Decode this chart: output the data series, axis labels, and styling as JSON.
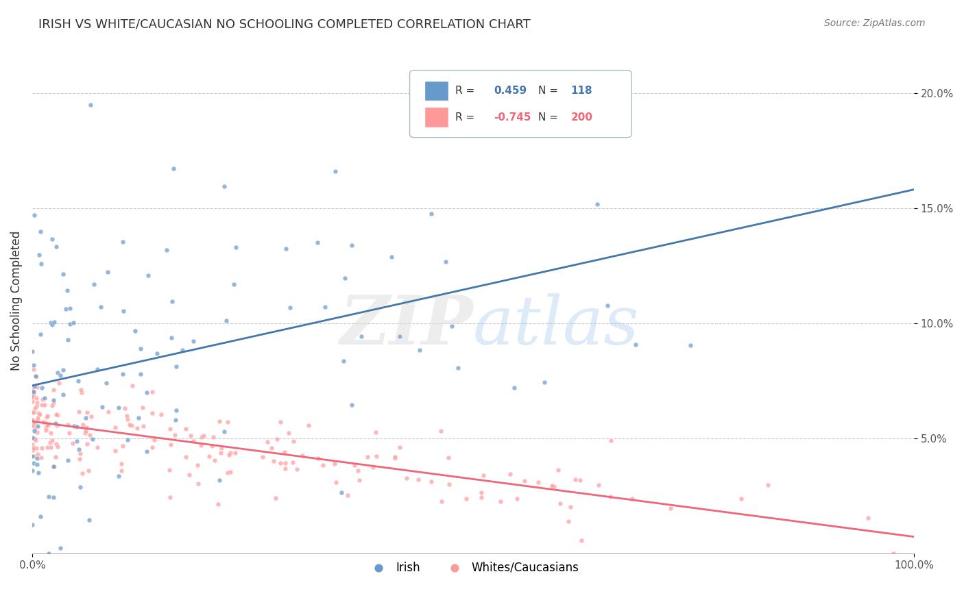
{
  "title": "IRISH VS WHITE/CAUCASIAN NO SCHOOLING COMPLETED CORRELATION CHART",
  "source": "Source: ZipAtlas.com",
  "ylabel": "No Schooling Completed",
  "blue_color": "#6699CC",
  "pink_color": "#FF9999",
  "blue_line_color": "#4477AA",
  "pink_line_color": "#EE6677",
  "ylim_min": 0,
  "ylim_max": 0.22,
  "xlim_min": 0,
  "xlim_max": 1.0,
  "yticks": [
    0.05,
    0.1,
    0.15,
    0.2
  ],
  "ytick_labels": [
    "5.0%",
    "10.0%",
    "15.0%",
    "20.0%"
  ],
  "xticks": [
    0.0,
    1.0
  ],
  "xtick_labels": [
    "0.0%",
    "100.0%"
  ],
  "legend_r1": "0.459",
  "legend_n1": "118",
  "legend_r2": "-0.745",
  "legend_n2": "200",
  "irish_label": "Irish",
  "white_label": "Whites/Caucasians"
}
